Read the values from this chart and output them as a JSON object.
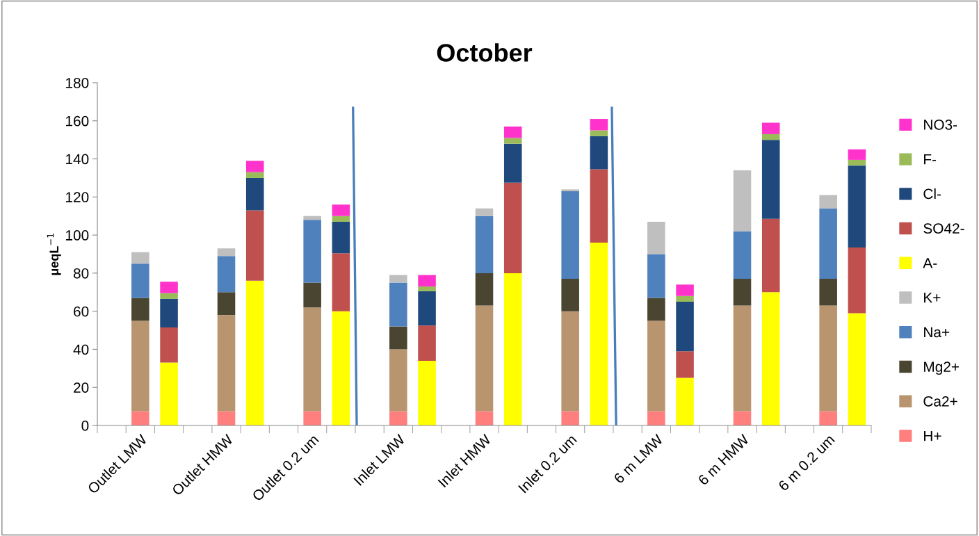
{
  "chart_data": {
    "type": "bar",
    "stacked": true,
    "title": "October",
    "ylabel": "μeqL$^{−1}$",
    "categories": [
      null,
      "Outlet LMW",
      null,
      null,
      "Outlet HMW",
      null,
      null,
      "Outlet 0.2 um",
      null,
      null,
      "Inlet LMW",
      null,
      null,
      "Inlet HMW",
      null,
      null,
      "Inlet 0.2 um",
      null,
      null,
      "6 m LMW",
      null,
      null,
      "6 m HMW",
      null,
      null,
      "6 m 0.2 um",
      null
    ],
    "ylim": [
      0,
      180
    ],
    "yticks": [
      0,
      20,
      40,
      60,
      80,
      100,
      120,
      140,
      160,
      180
    ],
    "grid": false,
    "legend": "right",
    "series": [
      {
        "name": "H+",
        "color": "#ff7f7f",
        "values": [
          null,
          7.5,
          null,
          null,
          7.5,
          null,
          null,
          7.5,
          null,
          null,
          7.5,
          null,
          null,
          7.5,
          null,
          null,
          7.5,
          null,
          null,
          7.5,
          null,
          null,
          7.5,
          null,
          null,
          7.5,
          null
        ]
      },
      {
        "name": "Ca2+",
        "color": "#b8956f",
        "values": [
          null,
          47.5,
          null,
          null,
          50.5,
          null,
          null,
          54.5,
          null,
          null,
          32.5,
          null,
          null,
          55.5,
          null,
          null,
          52.5,
          null,
          null,
          47.5,
          null,
          null,
          55.5,
          null,
          null,
          55.5,
          null
        ]
      },
      {
        "name": "Mg2+",
        "color": "#4a4530",
        "values": [
          null,
          12,
          null,
          null,
          12,
          null,
          null,
          13,
          null,
          null,
          12,
          null,
          null,
          17,
          null,
          null,
          17,
          null,
          null,
          12,
          null,
          null,
          14,
          null,
          null,
          14,
          null
        ]
      },
      {
        "name": "Na+",
        "color": "#4f81bd",
        "values": [
          null,
          18,
          null,
          null,
          19,
          null,
          null,
          33,
          null,
          null,
          23,
          null,
          null,
          30,
          null,
          null,
          46,
          null,
          null,
          23,
          null,
          null,
          25,
          null,
          null,
          37,
          null
        ]
      },
      {
        "name": "K+",
        "color": "#bfbfbf",
        "values": [
          null,
          6,
          null,
          null,
          4,
          null,
          null,
          2,
          null,
          null,
          4,
          null,
          null,
          4,
          null,
          null,
          1,
          null,
          null,
          17,
          null,
          null,
          32,
          null,
          null,
          7,
          null
        ]
      },
      {
        "name": "A-",
        "color": "#ffff00",
        "values": [
          null,
          null,
          33,
          null,
          null,
          76,
          null,
          null,
          60,
          null,
          null,
          34,
          null,
          null,
          80,
          null,
          null,
          96,
          null,
          null,
          25,
          null,
          null,
          70,
          null,
          null,
          59
        ]
      },
      {
        "name": "SO42-",
        "color": "#c0504d",
        "values": [
          null,
          null,
          18.5,
          null,
          null,
          37,
          null,
          null,
          30.5,
          null,
          null,
          18.5,
          null,
          null,
          47.5,
          null,
          null,
          38.5,
          null,
          null,
          14,
          null,
          null,
          38.5,
          null,
          null,
          34.5
        ]
      },
      {
        "name": "Cl-",
        "color": "#1f497d",
        "values": [
          null,
          null,
          15,
          null,
          null,
          17,
          null,
          null,
          16.5,
          null,
          null,
          18,
          null,
          null,
          20.5,
          null,
          null,
          17.5,
          null,
          null,
          26,
          null,
          null,
          41.5,
          null,
          null,
          43
        ]
      },
      {
        "name": "F-",
        "color": "#9bbb59",
        "values": [
          null,
          null,
          3,
          null,
          null,
          3,
          null,
          null,
          3,
          null,
          null,
          2.5,
          null,
          null,
          3,
          null,
          null,
          3,
          null,
          null,
          3,
          null,
          null,
          3,
          null,
          null,
          3
        ]
      },
      {
        "name": "NO3-",
        "color": "#ff33cc",
        "values": [
          null,
          null,
          6,
          null,
          null,
          6,
          null,
          null,
          6,
          null,
          null,
          6,
          null,
          null,
          6,
          null,
          null,
          6,
          null,
          null,
          6,
          null,
          null,
          6,
          null,
          null,
          5.5
        ]
      }
    ]
  }
}
